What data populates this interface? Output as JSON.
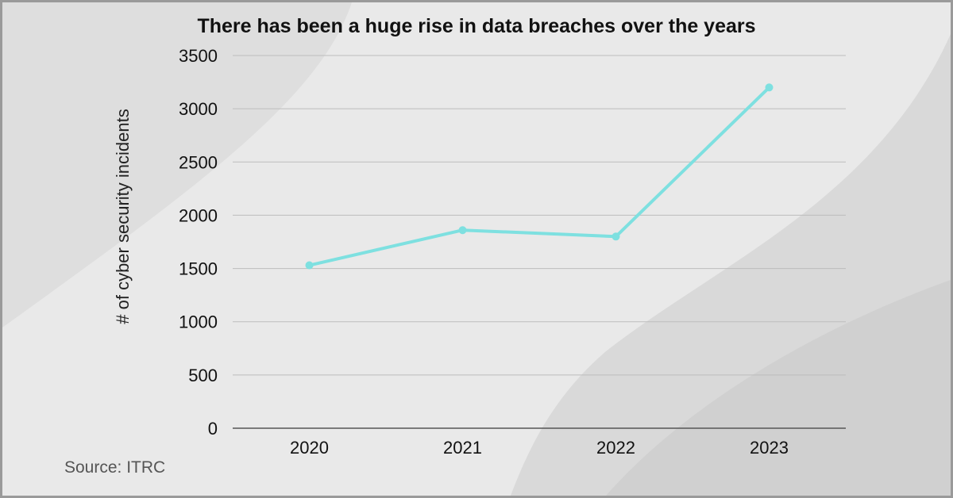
{
  "chart_data": {
    "type": "line",
    "title": "There has been a huge rise in data breaches over the years",
    "xlabel": "",
    "ylabel": "# of cyber security incidents",
    "categories": [
      "2020",
      "2021",
      "2022",
      "2023"
    ],
    "series": [
      {
        "values": [
          1530,
          1860,
          1800,
          3200
        ]
      }
    ],
    "ylim": [
      0,
      3500
    ],
    "yticks": [
      0,
      500,
      1000,
      1500,
      2000,
      2500,
      3000,
      3500
    ],
    "grid": true,
    "line_color": "#7ee0e0"
  },
  "source": "Source: ITRC"
}
